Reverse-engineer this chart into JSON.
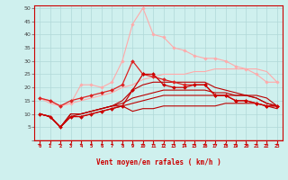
{
  "xlabel": "Vent moyen/en rafales ( km/h )",
  "bg_color": "#cff0ee",
  "grid_color": "#b0d8d8",
  "x": [
    0,
    1,
    2,
    3,
    4,
    5,
    6,
    7,
    8,
    9,
    10,
    11,
    12,
    13,
    14,
    15,
    16,
    17,
    18,
    19,
    20,
    21,
    22,
    23
  ],
  "ylim": [
    0,
    51
  ],
  "yticks": [
    0,
    5,
    10,
    15,
    20,
    25,
    30,
    35,
    40,
    45,
    50
  ],
  "lines": [
    {
      "y": [
        16,
        15,
        13,
        14,
        21,
        21,
        20,
        22,
        30,
        44,
        50,
        40,
        39,
        35,
        34,
        32,
        31,
        31,
        30,
        28,
        27,
        25,
        22,
        22
      ],
      "color": "#ffaaaa",
      "lw": 0.8,
      "marker": "D",
      "ms": 1.8,
      "zorder": 2
    },
    {
      "y": [
        16,
        14,
        13,
        14,
        15,
        16,
        17,
        18,
        20,
        21,
        23,
        24,
        25,
        25,
        25,
        26,
        26,
        27,
        27,
        27,
        27,
        27,
        26,
        22
      ],
      "color": "#ffaaaa",
      "lw": 0.8,
      "marker": null,
      "ms": 0,
      "zorder": 2
    },
    {
      "y": [
        16,
        15,
        13,
        15,
        16,
        17,
        18,
        19,
        21,
        30,
        25,
        24,
        23,
        22,
        21,
        21,
        21,
        17,
        17,
        15,
        15,
        14,
        13,
        13
      ],
      "color": "#dd2222",
      "lw": 0.9,
      "marker": "D",
      "ms": 2.0,
      "zorder": 5
    },
    {
      "y": [
        10,
        9,
        5,
        9,
        9,
        10,
        11,
        12,
        13,
        19,
        25,
        25,
        21,
        20,
        20,
        21,
        21,
        17,
        17,
        15,
        15,
        14,
        13,
        13
      ],
      "color": "#cc0000",
      "lw": 0.9,
      "marker": "D",
      "ms": 2.0,
      "zorder": 5
    },
    {
      "y": [
        10,
        9,
        5,
        9,
        9,
        10,
        11,
        12,
        13,
        11,
        12,
        12,
        13,
        13,
        13,
        13,
        13,
        13,
        14,
        14,
        14,
        14,
        13,
        12
      ],
      "color": "#bb0000",
      "lw": 0.8,
      "marker": null,
      "ms": 0,
      "zorder": 4
    },
    {
      "y": [
        10,
        9,
        5,
        9,
        10,
        11,
        12,
        13,
        13,
        14,
        15,
        16,
        17,
        17,
        17,
        17,
        17,
        17,
        17,
        17,
        17,
        17,
        16,
        13
      ],
      "color": "#bb0000",
      "lw": 0.8,
      "marker": null,
      "ms": 0,
      "zorder": 4
    },
    {
      "y": [
        10,
        9,
        5,
        10,
        10,
        11,
        12,
        13,
        14,
        16,
        17,
        18,
        19,
        19,
        19,
        19,
        19,
        18,
        18,
        17,
        17,
        16,
        14,
        13
      ],
      "color": "#bb0000",
      "lw": 0.8,
      "marker": null,
      "ms": 0,
      "zorder": 4
    },
    {
      "y": [
        10,
        9,
        5,
        10,
        10,
        11,
        12,
        13,
        15,
        19,
        21,
        22,
        22,
        22,
        22,
        22,
        22,
        20,
        19,
        18,
        17,
        16,
        14,
        13
      ],
      "color": "#bb0000",
      "lw": 0.8,
      "marker": null,
      "ms": 0,
      "zorder": 4
    }
  ],
  "arrow_color": "#cc0000",
  "axis_color": "#cc0000"
}
